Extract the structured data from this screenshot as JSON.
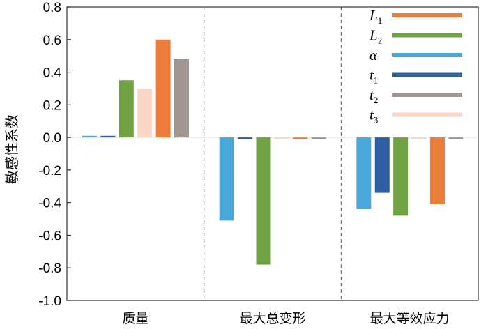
{
  "chart_data": {
    "type": "bar",
    "ylabel": "敏感性系数",
    "ylim": [
      -1.0,
      0.8
    ],
    "yticks": [
      "0.8",
      "0.6",
      "0.4",
      "0.2",
      "0.0",
      "-0.2",
      "-0.4",
      "-0.6",
      "-0.8",
      "-1.0"
    ],
    "ytick_values": [
      0.8,
      0.6,
      0.4,
      0.2,
      0.0,
      -0.2,
      -0.4,
      -0.6,
      -0.8,
      -1.0
    ],
    "categories": [
      "质量",
      "最大总变形",
      "最大等效应力"
    ],
    "legend_position": "top-right",
    "grid": false,
    "series": [
      {
        "name": "L",
        "sub": "1",
        "color": "#ED7D3A",
        "values": [
          0.6,
          -0.01,
          -0.41
        ]
      },
      {
        "name": "L",
        "sub": "2",
        "color": "#70A142",
        "values": [
          0.35,
          -0.78,
          -0.48
        ]
      },
      {
        "name": "α",
        "sub": "",
        "color": "#4AA7DC",
        "values": [
          0.01,
          -0.51,
          -0.44
        ]
      },
      {
        "name": "t",
        "sub": "1",
        "color": "#2E5FA3",
        "values": [
          0.01,
          -0.01,
          -0.34
        ]
      },
      {
        "name": "t",
        "sub": "2",
        "color": "#A09694",
        "values": [
          0.48,
          -0.01,
          -0.01
        ]
      },
      {
        "name": "t",
        "sub": "3",
        "color": "#FAD6C6",
        "values": [
          0.3,
          -0.01,
          -0.01
        ]
      }
    ]
  }
}
